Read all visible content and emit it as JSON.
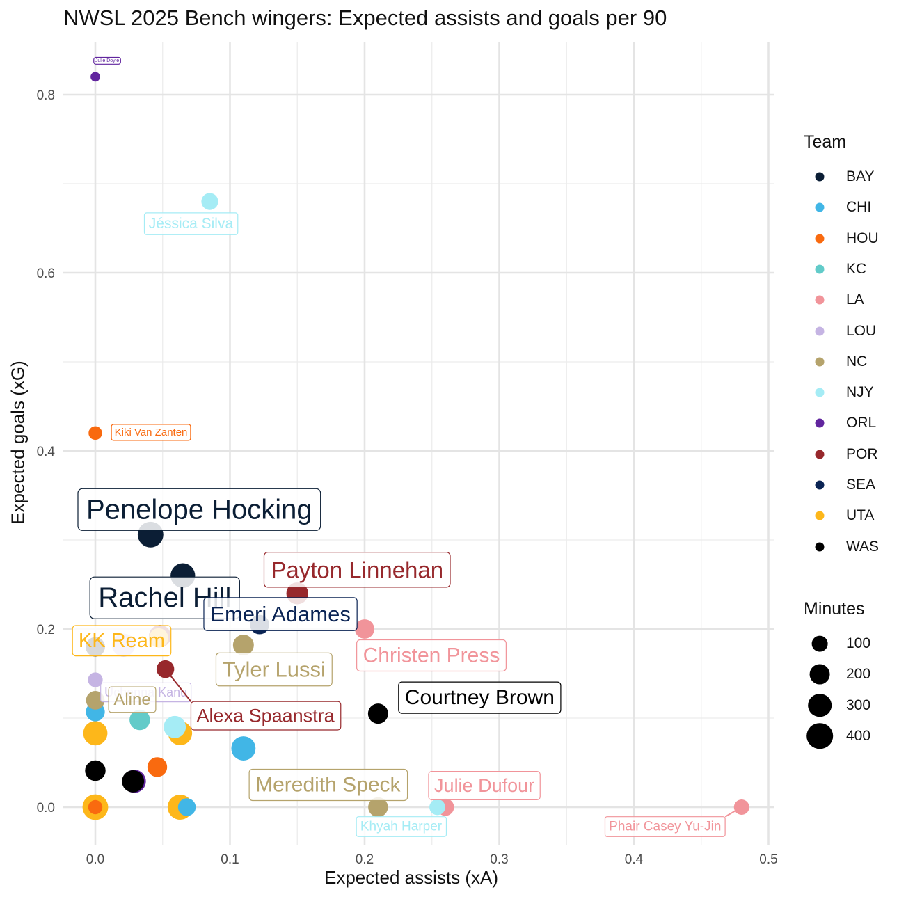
{
  "chart_data": {
    "type": "scatter",
    "title": "NWSL 2025 Bench wingers: Expected assists and goals per 90",
    "xlabel": "Expected assists (xA)",
    "ylabel": "Expected goals (xG)",
    "xlim": [
      -0.025,
      0.505
    ],
    "ylim": [
      -0.04,
      0.84
    ],
    "x_ticks": [
      0.0,
      0.1,
      0.2,
      0.3,
      0.4,
      0.5
    ],
    "x_tick_labels": [
      "0.0",
      "0.1",
      "0.2",
      "0.3",
      "0.4",
      "0.5"
    ],
    "y_ticks": [
      0.0,
      0.2,
      0.4,
      0.6,
      0.8
    ],
    "y_tick_labels": [
      "0.0",
      "0.2",
      "0.4",
      "0.6",
      "0.8"
    ],
    "grid": true,
    "legend_position": "right",
    "team_legend_title": "Team",
    "size_legend_title": "Minutes",
    "teams": [
      {
        "name": "BAY",
        "color": "#0B1E35"
      },
      {
        "name": "CHI",
        "color": "#41B6E6"
      },
      {
        "name": "HOU",
        "color": "#F96A0F"
      },
      {
        "name": "KC",
        "color": "#62CBC9"
      },
      {
        "name": "LA",
        "color": "#F1949A"
      },
      {
        "name": "LOU",
        "color": "#C5B4E3"
      },
      {
        "name": "NC",
        "color": "#B5A36C"
      },
      {
        "name": "NJY",
        "color": "#A5ECF5"
      },
      {
        "name": "ORL",
        "color": "#61259E"
      },
      {
        "name": "POR",
        "color": "#97282C"
      },
      {
        "name": "SEA",
        "color": "#0B2454"
      },
      {
        "name": "UTA",
        "color": "#FDB71A"
      },
      {
        "name": "WAS",
        "color": "#000000"
      }
    ],
    "size_legend": [
      100,
      200,
      300,
      400
    ],
    "points": [
      {
        "x": 0.0,
        "y": 0.82,
        "team": "ORL",
        "minutes": 15,
        "label": "Julie Doyle"
      },
      {
        "x": 0.085,
        "y": 0.68,
        "team": "NJY",
        "minutes": 120,
        "label": "Jéssica Silva"
      },
      {
        "x": 0.0,
        "y": 0.42,
        "team": "HOU",
        "minutes": 60,
        "label": "Kiki Van Zanten"
      },
      {
        "x": 0.041,
        "y": 0.306,
        "team": "BAY",
        "minutes": 380,
        "label": "Penelope Hocking"
      },
      {
        "x": 0.065,
        "y": 0.26,
        "team": "BAY",
        "minutes": 340,
        "label": "Rachel Hill"
      },
      {
        "x": 0.15,
        "y": 0.24,
        "team": "POR",
        "minutes": 250,
        "label": "Payton Linnehan"
      },
      {
        "x": 0.122,
        "y": 0.205,
        "team": "SEA",
        "minutes": 180,
        "label": "Emeri Adames"
      },
      {
        "x": 0.2,
        "y": 0.2,
        "team": "LA",
        "minutes": 180,
        "label": "Christen Press"
      },
      {
        "x": 0.047,
        "y": 0.19,
        "team": "UTA",
        "minutes": 180,
        "label": "KK Ream"
      },
      {
        "x": 0.11,
        "y": 0.182,
        "team": "NC",
        "minutes": 220,
        "label": "Tyler Lussi"
      },
      {
        "x": 0.021,
        "y": 0.182,
        "team": "LOU",
        "minutes": 290,
        "label": "Uchenna Kanu"
      },
      {
        "x": 0.052,
        "y": 0.155,
        "team": "POR",
        "minutes": 140,
        "label": "Alexa Spaanstra"
      },
      {
        "x": 0.21,
        "y": 0.105,
        "team": "WAS",
        "minutes": 200,
        "label": "Courtney Brown"
      },
      {
        "x": 0.0,
        "y": 0.12,
        "team": "NC",
        "minutes": 160,
        "label": "Aline"
      },
      {
        "x": 0.21,
        "y": 0.0,
        "team": "NC",
        "minutes": 190,
        "label": "Meredith Speck"
      },
      {
        "x": 0.26,
        "y": 0.0,
        "team": "LA",
        "minutes": 130,
        "label": "Julie Dufour"
      },
      {
        "x": 0.254,
        "y": 0.0,
        "team": "NJY",
        "minutes": 100,
        "label": "Khyah Harper"
      },
      {
        "x": 0.48,
        "y": 0.0,
        "team": "LA",
        "minutes": 90,
        "label": "Phair Casey Yu-Jin"
      },
      {
        "x": 0.0,
        "y": 0.18,
        "team": "WAS",
        "minutes": 180,
        "label": ""
      },
      {
        "x": 0.048,
        "y": 0.192,
        "team": "POR",
        "minutes": 260,
        "label": ""
      },
      {
        "x": 0.0,
        "y": 0.143,
        "team": "LOU",
        "minutes": 80,
        "label": ""
      },
      {
        "x": 0.0,
        "y": 0.107,
        "team": "CHI",
        "minutes": 170,
        "label": ""
      },
      {
        "x": 0.0,
        "y": 0.083,
        "team": "UTA",
        "minutes": 330,
        "label": ""
      },
      {
        "x": 0.033,
        "y": 0.098,
        "team": "KC",
        "minutes": 210,
        "label": ""
      },
      {
        "x": 0.063,
        "y": 0.083,
        "team": "UTA",
        "minutes": 320,
        "label": ""
      },
      {
        "x": 0.059,
        "y": 0.09,
        "team": "NJY",
        "minutes": 260,
        "label": ""
      },
      {
        "x": 0.11,
        "y": 0.066,
        "team": "CHI",
        "minutes": 330,
        "label": ""
      },
      {
        "x": 0.0,
        "y": 0.041,
        "team": "WAS",
        "minutes": 210,
        "label": ""
      },
      {
        "x": 0.046,
        "y": 0.045,
        "team": "HOU",
        "minutes": 190,
        "label": ""
      },
      {
        "x": 0.028,
        "y": 0.029,
        "team": "WAS",
        "minutes": 260,
        "label": ""
      },
      {
        "x": 0.029,
        "y": 0.029,
        "team": "ORL",
        "minutes": 290,
        "label": ""
      },
      {
        "x": 0.0,
        "y": 0.0,
        "team": "UTA",
        "minutes": 380,
        "label": ""
      },
      {
        "x": 0.0,
        "y": 0.0,
        "team": "HOU",
        "minutes": 70,
        "label": ""
      },
      {
        "x": 0.063,
        "y": 0.0,
        "team": "UTA",
        "minutes": 360,
        "label": ""
      },
      {
        "x": 0.068,
        "y": 0.0,
        "team": "CHI",
        "minutes": 140,
        "label": ""
      }
    ]
  }
}
